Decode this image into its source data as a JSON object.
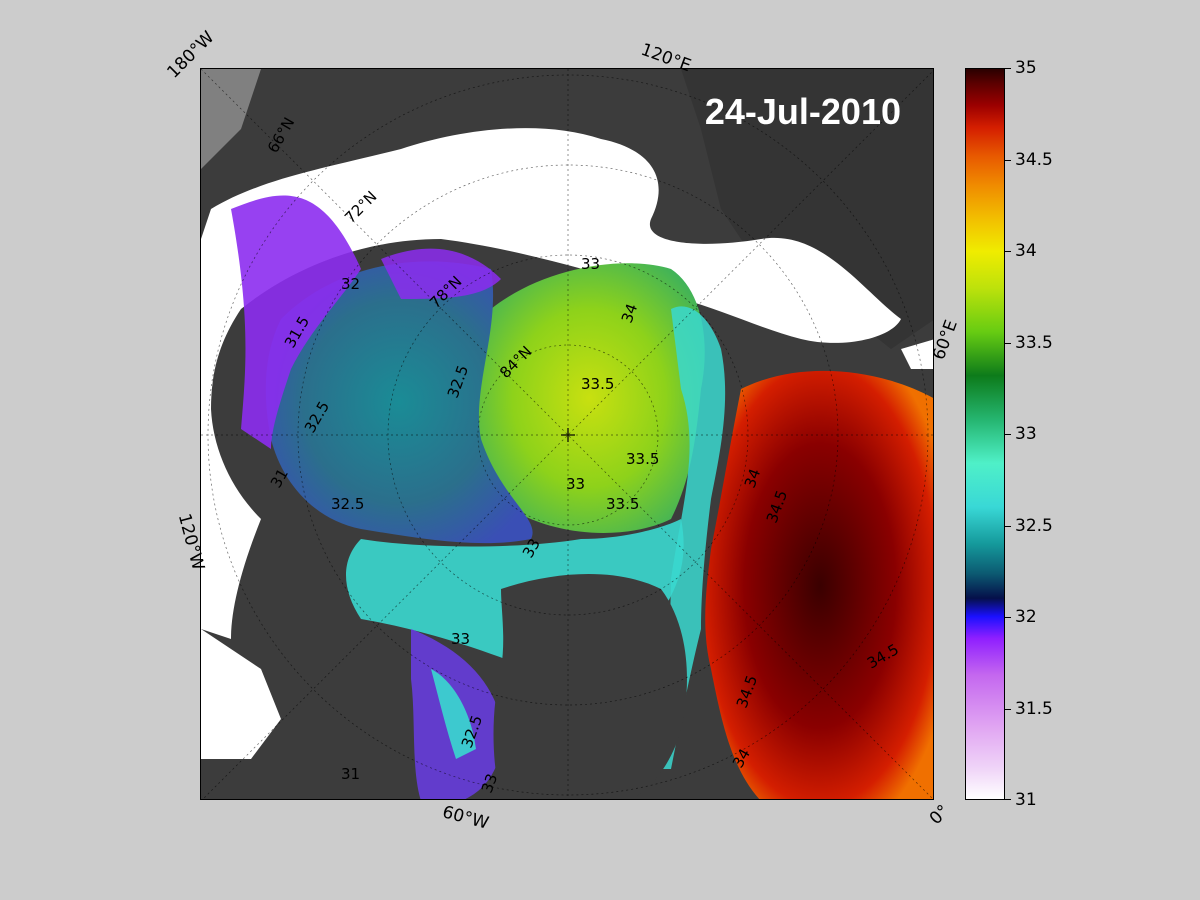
{
  "map": {
    "date": "24-Jul-2010",
    "longitude_labels": [
      "180°W",
      "120°E",
      "60°E",
      "0°",
      "60°W",
      "120°W"
    ],
    "latitude_labels": [
      "66°N",
      "72°N",
      "78°N",
      "84°N"
    ],
    "contour_labels": [
      "31",
      "31.5",
      "32",
      "32.5",
      "33",
      "33.5",
      "34",
      "34.5"
    ],
    "colors": {
      "land": "#3c3c3c",
      "ice": "#ffffff",
      "background": "#cccccc"
    }
  },
  "colorbar": {
    "min": 31,
    "max": 35,
    "ticks": [
      "31",
      "31.5",
      "32",
      "32.5",
      "33",
      "33.5",
      "34",
      "34.5",
      "35"
    ]
  }
}
